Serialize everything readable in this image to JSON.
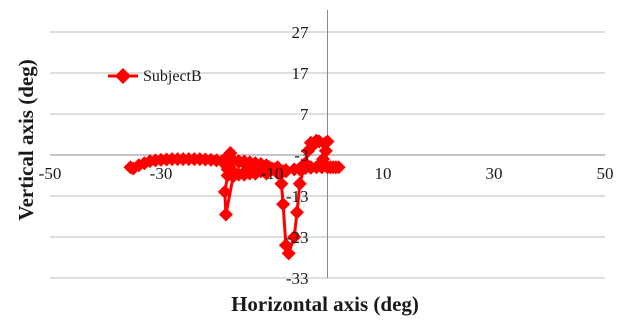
{
  "chart_data": {
    "type": "scatter",
    "xlabel": "Horizontal axis (deg)",
    "ylabel": "Vertical axis (deg)",
    "xlim": [
      -50,
      50
    ],
    "ylim": [
      -33,
      27
    ],
    "x_ticks": [
      -50,
      -30,
      -10,
      10,
      30,
      50
    ],
    "y_ticks": [
      27,
      17,
      7,
      -3,
      -13,
      -23,
      -33
    ],
    "x_tick_labels": [
      "-50",
      "-30",
      "-10",
      "10",
      "30",
      "50"
    ],
    "y_tick_labels": [
      "27",
      "17",
      "7",
      "-3",
      "-13",
      "-23",
      "-33"
    ],
    "grid": "horizontal",
    "legend": {
      "position": "upper-left",
      "entries": [
        "SubjectB"
      ]
    },
    "color": "#ff0000",
    "series": [
      {
        "name": "SubjectB",
        "marker": "diamond",
        "x": [
          -35.5,
          -35,
          -34,
          -33,
          -32,
          -31,
          -30,
          -29,
          -28,
          -27,
          -26,
          -25,
          -24,
          -23,
          -22,
          -21,
          -20,
          -19,
          -18,
          -17,
          -16,
          -15,
          -14,
          -13,
          -12,
          -11,
          -10.5,
          -11,
          -12,
          -14,
          -16,
          -18,
          -18.5,
          -18.3,
          -17,
          -15,
          -13,
          -11,
          -10,
          -9,
          -8.5,
          -8.3,
          -8,
          -7.5,
          -7,
          -6,
          -5.5,
          -5,
          -4,
          -3.5,
          -3,
          -2,
          -2.5,
          -1.5,
          -0.5,
          0,
          -0.3,
          -0.8,
          -1.5,
          -3,
          -5,
          -7.5,
          -8.5,
          -9,
          -9.5,
          -10,
          -10.5,
          -11,
          -12,
          -13,
          -14,
          -15,
          -16,
          -17,
          -18,
          -17.5,
          -18.5,
          -18.3,
          -18,
          -17,
          -15,
          -13,
          -11,
          -9,
          -8.5,
          -8.3,
          -8,
          -7.5,
          -6,
          -5,
          -4,
          -3,
          -2,
          -1,
          0,
          0.5,
          1,
          1.5,
          2
        ],
        "y": [
          -6,
          -6.3,
          -5.5,
          -5,
          -4.5,
          -4.3,
          -4.2,
          -4.1,
          -4,
          -4,
          -4,
          -4,
          -4,
          -4,
          -4.1,
          -4.2,
          -4.3,
          -4.5,
          -4.4,
          -4.4,
          -4.5,
          -4.6,
          -4.8,
          -5,
          -5.2,
          -5.5,
          -6,
          -6.5,
          -7,
          -7.5,
          -7.8,
          -8,
          -12,
          -17.5,
          -8.2,
          -7.8,
          -7.5,
          -7,
          -6.5,
          -6,
          -7,
          -10,
          -15,
          -25,
          -27,
          -23,
          -17,
          -10,
          -5,
          -2,
          0,
          0.5,
          -0.5,
          0.3,
          -0.2,
          0.3,
          -2,
          -4,
          -5.5,
          -6,
          -6.5,
          -7,
          -7,
          -6.8,
          -6.5,
          -6.3,
          -6,
          -5.8,
          -5.6,
          -5.5,
          -5.3,
          -5,
          -4.7,
          -4.3,
          -3.5,
          -2.5,
          -4,
          -5.5,
          -6.5,
          -7,
          -7.2,
          -7.5,
          -7.5,
          -7.4,
          -7.3,
          -7.2,
          -7,
          -6.7,
          -6.5,
          -6.3,
          -6.2,
          -6.1,
          -6,
          -6,
          -6,
          -6,
          -6,
          -6,
          -6
        ]
      }
    ]
  }
}
